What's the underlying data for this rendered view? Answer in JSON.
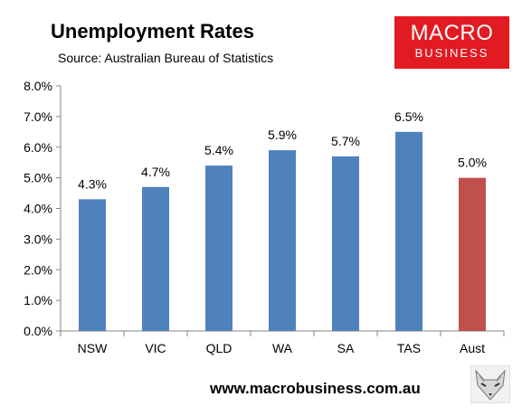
{
  "title": "Unemployment Rates",
  "subtitle": "Source: Australian Bureau of Statistics",
  "logo": {
    "line1": "MACRO",
    "line2": "BUSINESS",
    "color": "#e21b22"
  },
  "footer": {
    "url": "www.macrobusiness.com.au",
    "icon": "fox-icon"
  },
  "chart_data": {
    "type": "bar",
    "categories": [
      "NSW",
      "VIC",
      "QLD",
      "WA",
      "SA",
      "TAS",
      "Aust"
    ],
    "values": [
      4.3,
      4.7,
      5.4,
      5.9,
      5.7,
      6.5,
      5.0
    ],
    "data_labels": [
      "4.3%",
      "4.7%",
      "5.4%",
      "5.9%",
      "5.7%",
      "6.5%",
      "5.0%"
    ],
    "ylim": [
      0,
      8
    ],
    "yticks": [
      0,
      1,
      2,
      3,
      4,
      5,
      6,
      7,
      8
    ],
    "ytick_labels": [
      "0.0%",
      "1.0%",
      "2.0%",
      "3.0%",
      "4.0%",
      "5.0%",
      "6.0%",
      "7.0%",
      "8.0%"
    ],
    "colors": [
      "#4f81bd",
      "#4f81bd",
      "#4f81bd",
      "#4f81bd",
      "#4f81bd",
      "#4f81bd",
      "#c0504d"
    ],
    "grid": false,
    "legend": "none",
    "xlabel": "",
    "ylabel": ""
  }
}
